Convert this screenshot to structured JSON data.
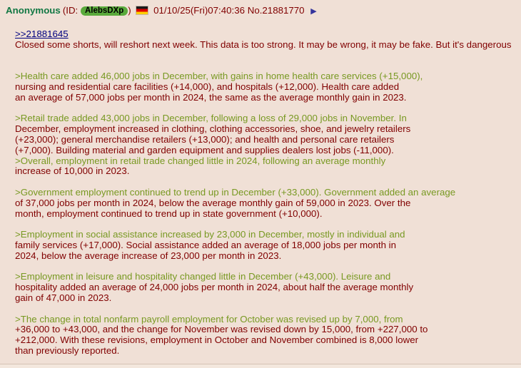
{
  "post": {
    "header": {
      "author": "Anonymous",
      "id_prefix": "(ID:",
      "id": "AlebsDXp",
      "id_suffix": ")",
      "flag": "Germany",
      "datetime": "01/10/25(Fri)07:40:36",
      "post_number": "No.21881770",
      "menu_arrow": "▶"
    },
    "quotelink": ">>21881645",
    "intro": "Closed some shorts, will reshort next week. This data is too strong. It may be wrong, it may be fake. But it's dangerous",
    "paragraphs": [
      {
        "lines": [
          {
            "text": ">Health care added 46,000 jobs in December, with gains in home health care services (+15,000),",
            "green": true
          },
          {
            "text": "nursing and residential care facilities (+14,000), and hospitals (+12,000). Health care added",
            "green": false
          },
          {
            "text": "an average of 57,000 jobs per month in 2024, the same as the average monthly gain in 2023.",
            "green": false
          }
        ]
      },
      {
        "lines": [
          {
            "text": ">Retail trade added 43,000 jobs in December, following a loss of 29,000 jobs in November. In",
            "green": true
          },
          {
            "text": "December, employment increased in clothing, clothing accessories, shoe, and jewelry retailers",
            "green": false
          },
          {
            "text": "(+23,000); general merchandise retailers (+13,000); and health and personal care retailers",
            "green": false
          },
          {
            "text": "(+7,000). Building material and garden equipment and supplies dealers lost jobs (-11,000).",
            "green": false
          },
          {
            "text": ">Overall, employment in retail trade changed little in 2024, following an average monthly",
            "green": true
          },
          {
            "text": "increase of 10,000 in 2023.",
            "green": false
          }
        ]
      },
      {
        "lines": [
          {
            "text": ">Government employment continued to trend up in December (+33,000). Government added an average",
            "green": true
          },
          {
            "text": "of 37,000 jobs per month in 2024, below the average monthly gain of 59,000 in 2023. Over the",
            "green": false
          },
          {
            "text": "month, employment continued to trend up in state government (+10,000).",
            "green": false
          }
        ]
      },
      {
        "lines": [
          {
            "text": ">Employment in social assistance increased by 23,000 in December, mostly in individual and",
            "green": true
          },
          {
            "text": "family services (+17,000). Social assistance added an average of 18,000 jobs per month in",
            "green": false
          },
          {
            "text": "2024, below the average increase of 23,000 per month in 2023.",
            "green": false
          }
        ]
      },
      {
        "lines": [
          {
            "text": ">Employment in leisure and hospitality changed little in December (+43,000). Leisure and",
            "green": true
          },
          {
            "text": "hospitality added an average of 24,000 jobs per month in 2024, about half the average monthly",
            "green": false
          },
          {
            "text": "gain of 47,000 in 2023.",
            "green": false
          }
        ]
      },
      {
        "lines": [
          {
            "text": ">The change in total nonfarm payroll employment for October was revised up by 7,000, from",
            "green": true
          },
          {
            "text": "+36,000 to +43,000, and the change for November was revised down by 15,000, from +227,000 to",
            "green": false
          },
          {
            "text": "+212,000. With these revisions, employment in October and November combined is 8,000 lower",
            "green": false
          },
          {
            "text": "than previously reported.",
            "green": false
          }
        ]
      }
    ]
  },
  "colors": {
    "background": "#F0E0D6",
    "text": "#800000",
    "name": "#117743",
    "greentext": "#789922",
    "link": "#000080",
    "arrow": "#34349C",
    "id_badge_bg": "#5AAA3C",
    "id_badge_text": "#000000",
    "border": "#D5C3B5"
  }
}
